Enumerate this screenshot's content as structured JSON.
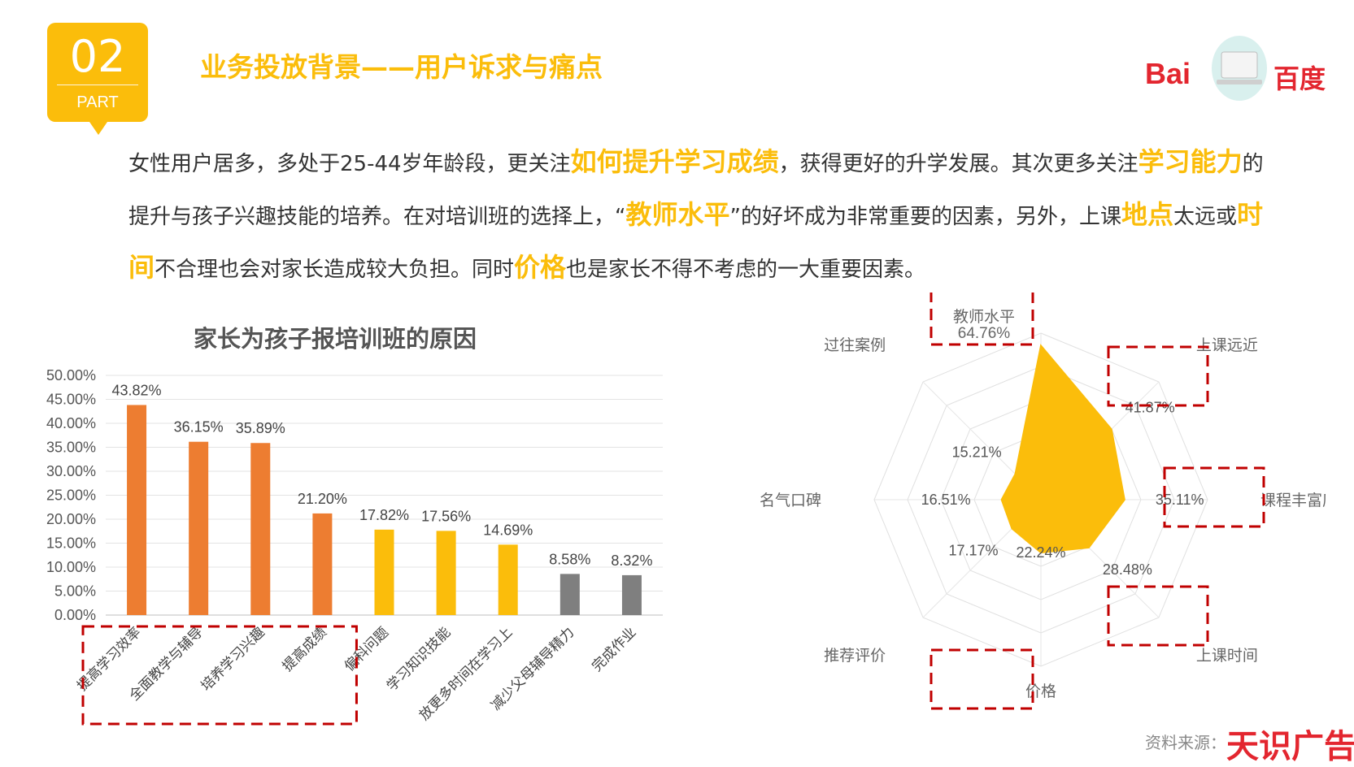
{
  "header": {
    "part_number": "02",
    "part_label": "PART",
    "title": "业务投放背景——用户诉求与痛点",
    "logo_text_left": "Bai",
    "logo_text_right": "百度"
  },
  "summary": {
    "s1": "女性用户居多，多处于25-44岁年龄段，更关注",
    "h1": "如何提升学习成绩",
    "s2": "，获得更好的升学发展。其次更多关注",
    "h2": "学习能力",
    "s3": "的提升与孩子兴趣技能的培养。在对培训班的选择上，“",
    "h3": "教师水平",
    "s4": "”的好坏成为非常重要的因素，另外，上课",
    "h4": "地点",
    "s5": "太远或",
    "h5": "时间",
    "s6": "不合理也会对家长造成较大负担。同时",
    "h6": "价格",
    "s7": "也是家长不得不考虑的一大重要因素。"
  },
  "footer": {
    "source": "资料来源：",
    "watermark": "天识广告"
  },
  "colors": {
    "accent": "#fbbd0b",
    "orange": "#ed7d31",
    "gray": "#7f7f7f",
    "red_dash": "#c00000",
    "brand_red": "#e3262f"
  },
  "chart_data": [
    {
      "type": "bar",
      "title": "家长为孩子报培训班的原因",
      "categories": [
        "提高学习效率",
        "全面教学与辅导",
        "培养学习兴趣",
        "提高成绩",
        "偏科问题",
        "学习知识技能",
        "放更多时间在学习上",
        "减少父母辅导精力",
        "完成作业"
      ],
      "values": [
        43.82,
        36.15,
        35.89,
        21.2,
        17.82,
        17.56,
        14.69,
        8.58,
        8.32
      ],
      "labels": [
        "43.82%",
        "36.15%",
        "35.89%",
        "21.20%",
        "17.82%",
        "17.56%",
        "14.69%",
        "8.58%",
        "8.32%"
      ],
      "bar_colors": [
        "#ed7d31",
        "#ed7d31",
        "#ed7d31",
        "#ed7d31",
        "#fbbd0b",
        "#fbbd0b",
        "#fbbd0b",
        "#7f7f7f",
        "#7f7f7f"
      ],
      "yticks": [
        "0.00%",
        "5.00%",
        "10.00%",
        "15.00%",
        "20.00%",
        "25.00%",
        "30.00%",
        "35.00%",
        "40.00%",
        "45.00%",
        "50.00%"
      ],
      "ylim": [
        0,
        50
      ],
      "grid": true,
      "highlighted_categories": [
        "提高学习效率",
        "全面教学与辅导",
        "培养学习兴趣",
        "提高成绩"
      ]
    },
    {
      "type": "radar",
      "axes": [
        "教师水平",
        "上课远近",
        "课程丰富度",
        "上课时间",
        "价格",
        "推荐评价",
        "名气口碑",
        "过往案例"
      ],
      "values": [
        64.76,
        41.87,
        35.11,
        28.48,
        22.24,
        17.17,
        16.51,
        15.21
      ],
      "value_labels": [
        "64.76%",
        "41.87%",
        "35.11%",
        "28.48%",
        "22.24%",
        "17.17%",
        "16.51%",
        "15.21%"
      ],
      "top_label": "教师水平",
      "top_value": "64.76%",
      "max": 70,
      "rings": 5,
      "highlighted_axes": [
        "教师水平",
        "上课远近",
        "课程丰富度",
        "上课时间",
        "价格"
      ]
    }
  ]
}
